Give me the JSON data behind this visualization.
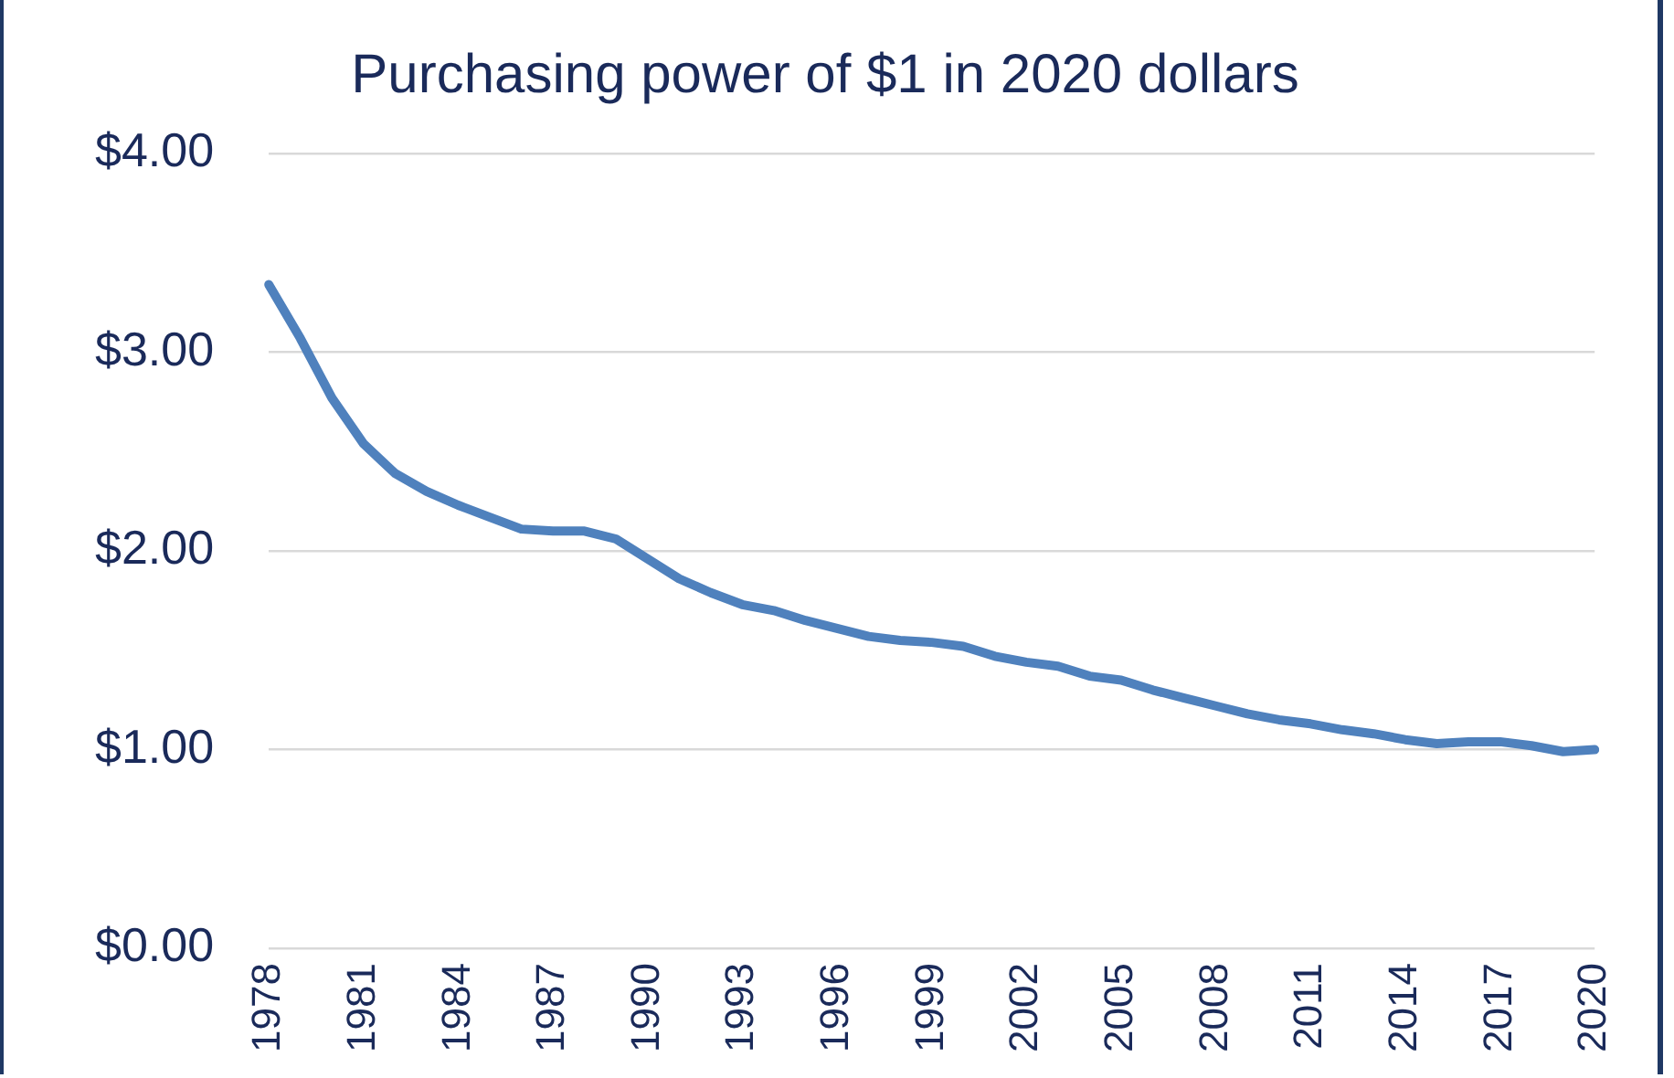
{
  "chart_data": {
    "type": "line",
    "title": "Purchasing power of $1 in 2020 dollars",
    "categories": [
      "1978",
      null,
      null,
      "1981",
      null,
      null,
      "1984",
      null,
      null,
      "1987",
      null,
      null,
      "1990",
      null,
      null,
      "1993",
      null,
      null,
      "1996",
      null,
      null,
      "1999",
      null,
      null,
      "2002",
      null,
      null,
      "2005",
      null,
      null,
      "2008",
      null,
      null,
      "2011",
      null,
      null,
      "2014",
      null,
      null,
      "2017",
      null,
      null,
      "2020"
    ],
    "series": [
      {
        "color": "#4f81bd",
        "values": [
          3.34,
          3.07,
          2.77,
          2.54,
          2.39,
          2.3,
          2.23,
          2.17,
          2.11,
          2.1,
          2.1,
          2.06,
          1.96,
          1.86,
          1.79,
          1.73,
          1.7,
          1.65,
          1.61,
          1.57,
          1.55,
          1.54,
          1.52,
          1.47,
          1.44,
          1.42,
          1.37,
          1.35,
          1.3,
          1.26,
          1.22,
          1.18,
          1.15,
          1.13,
          1.1,
          1.08,
          1.05,
          1.03,
          1.04,
          1.04,
          1.02,
          0.99,
          1.0
        ]
      }
    ],
    "ylim": [
      0,
      4
    ],
    "yticks": [
      {
        "value": 0,
        "label": "$0.00"
      },
      {
        "value": 1,
        "label": "$1.00"
      },
      {
        "value": 2,
        "label": "$2.00"
      },
      {
        "value": 3,
        "label": "$3.00"
      },
      {
        "value": 4,
        "label": "$4.00"
      }
    ],
    "grid": "y",
    "legend": false,
    "marker": "none",
    "line_style": "solid"
  }
}
